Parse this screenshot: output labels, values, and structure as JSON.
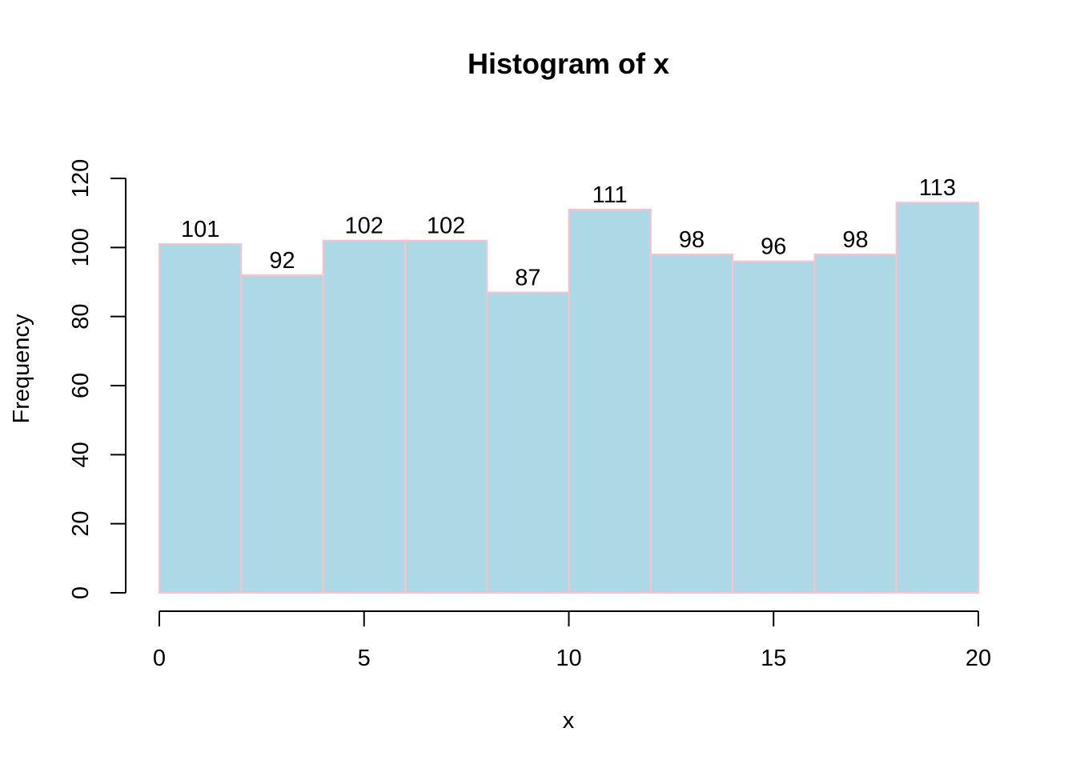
{
  "chart_data": {
    "type": "bar",
    "title": "Histogram of x",
    "xlabel": "x",
    "ylabel": "Frequency",
    "bins": [
      [
        0,
        2
      ],
      [
        2,
        4
      ],
      [
        4,
        6
      ],
      [
        6,
        8
      ],
      [
        8,
        10
      ],
      [
        10,
        12
      ],
      [
        12,
        14
      ],
      [
        14,
        16
      ],
      [
        16,
        18
      ],
      [
        18,
        20
      ]
    ],
    "values": [
      101,
      92,
      102,
      102,
      87,
      111,
      98,
      96,
      98,
      113
    ],
    "data_labels": [
      "101",
      "92",
      "102",
      "102",
      "87",
      "111",
      "98",
      "96",
      "98",
      "113"
    ],
    "xlim": [
      0,
      20
    ],
    "ylim": [
      0,
      120
    ],
    "x_ticks": [
      0,
      5,
      10,
      15,
      20
    ],
    "x_tick_labels": [
      "0",
      "5",
      "10",
      "15",
      "20"
    ],
    "y_ticks": [
      0,
      20,
      40,
      60,
      80,
      100,
      120
    ],
    "y_tick_labels": [
      "0",
      "20",
      "40",
      "60",
      "80",
      "100",
      "120"
    ],
    "grid": false,
    "colors": {
      "bar_fill": "#add8e6",
      "bar_border": "#ffc0cb"
    }
  }
}
